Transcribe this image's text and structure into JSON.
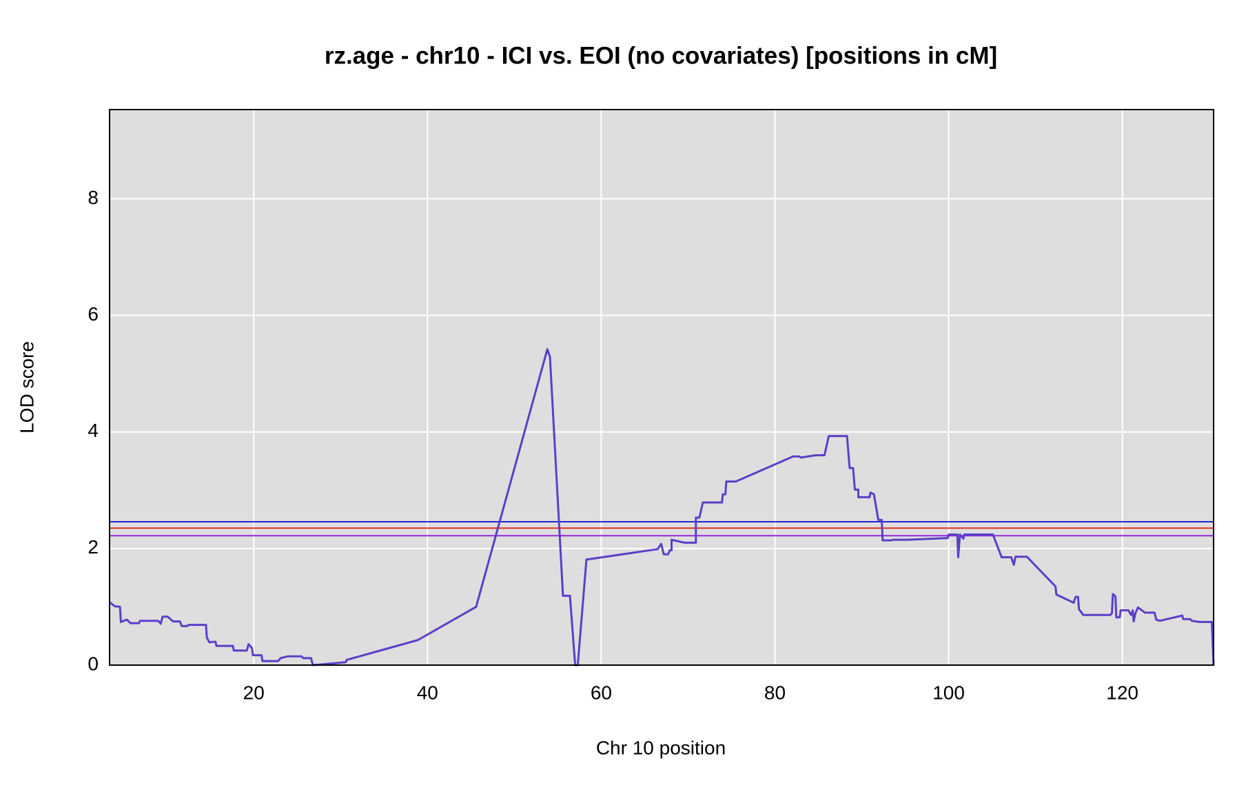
{
  "chart_data": {
    "type": "line",
    "title": "rz.age - chr10 - ICI vs. EOI (no covariates) [positions in cM]",
    "x_label": "Chr 10 position",
    "y_label": "LOD score",
    "xlim": [
      3.4,
      130.5
    ],
    "ylim": [
      0,
      9.53
    ],
    "xticks": [
      20,
      40,
      60,
      80,
      100,
      120
    ],
    "yticks": [
      0,
      2,
      4,
      6,
      8
    ],
    "grid": true,
    "background": "#dedede",
    "color": "#5a3fc8",
    "thresholds": [
      {
        "value": 2.46,
        "color": "#2323d6"
      },
      {
        "value": 2.35,
        "color": "#e0332a"
      },
      {
        "value": 2.22,
        "color": "#9126d9"
      }
    ],
    "x": [
      3.4,
      4.0,
      4.6,
      4.7,
      5.4,
      5.8,
      6.8,
      6.9,
      9.0,
      9.3,
      9.5,
      10.1,
      10.7,
      11.5,
      11.7,
      12.3,
      12.5,
      14.5,
      14.6,
      14.9,
      15.3,
      15.6,
      15.7,
      17.6,
      17.7,
      19.2,
      19.4,
      19.8,
      19.9,
      20.9,
      21.0,
      22.8,
      23.1,
      23.9,
      25.5,
      25.7,
      26.6,
      26.8,
      27.7,
      30.6,
      30.7,
      38.9,
      45.6,
      53.8,
      54.1,
      55.6,
      56.4,
      57.0,
      57.3,
      58.3,
      66.5,
      66.9,
      67.2,
      67.7,
      67.9,
      68.1,
      68.1,
      69.6,
      70.9,
      70.9,
      71.3,
      71.7,
      73.9,
      74.0,
      74.3,
      74.4,
      75.5,
      82.1,
      82.8,
      83.0,
      84.7,
      85.7,
      86.2,
      88.3,
      88.6,
      89.0,
      89.2,
      89.6,
      89.6,
      90.9,
      91.0,
      91.4,
      91.9,
      92.3,
      92.4,
      93.4,
      93.6,
      95.3,
      99.9,
      100.0,
      101.0,
      101.1,
      101.3,
      101.7,
      101.8,
      105.1,
      106.1,
      107.2,
      107.5,
      107.7,
      109.0,
      112.3,
      112.4,
      114.4,
      114.6,
      114.9,
      115.0,
      115.5,
      118.6,
      118.8,
      118.9,
      119.2,
      119.3,
      119.7,
      119.8,
      120.7,
      121.0,
      121.2,
      121.3,
      121.5,
      121.8,
      122.6,
      123.7,
      123.9,
      124.3,
      126.9,
      127.0,
      127.8,
      128.0,
      128.9,
      130.3,
      130.5
    ],
    "values": [
      1.08,
      1.01,
      1.0,
      0.74,
      0.78,
      0.72,
      0.72,
      0.76,
      0.76,
      0.71,
      0.83,
      0.83,
      0.75,
      0.75,
      0.67,
      0.67,
      0.69,
      0.69,
      0.47,
      0.39,
      0.4,
      0.4,
      0.33,
      0.33,
      0.25,
      0.25,
      0.36,
      0.29,
      0.17,
      0.17,
      0.07,
      0.07,
      0.12,
      0.15,
      0.15,
      0.12,
      0.12,
      0,
      0.01,
      0.05,
      0.09,
      0.43,
      1.0,
      5.42,
      5.29,
      1.19,
      1.19,
      0,
      0,
      1.81,
      1.99,
      2.08,
      1.9,
      1.9,
      1.97,
      1.97,
      2.15,
      2.1,
      2.1,
      2.53,
      2.53,
      2.79,
      2.79,
      2.93,
      2.93,
      3.15,
      3.15,
      3.58,
      3.58,
      3.56,
      3.6,
      3.6,
      3.93,
      3.93,
      3.38,
      3.38,
      3.01,
      3.01,
      2.88,
      2.88,
      2.96,
      2.93,
      2.49,
      2.49,
      2.14,
      2.14,
      2.15,
      2.15,
      2.18,
      2.24,
      2.24,
      1.85,
      2.24,
      2.17,
      2.24,
      2.24,
      1.85,
      1.85,
      1.72,
      1.86,
      1.86,
      1.35,
      1.21,
      1.07,
      1.17,
      1.17,
      0.96,
      0.86,
      0.86,
      0.89,
      1.22,
      1.18,
      0.82,
      0.82,
      0.94,
      0.94,
      0.86,
      0.94,
      0.75,
      0.89,
      0.99,
      0.9,
      0.9,
      0.78,
      0.76,
      0.85,
      0.79,
      0.79,
      0.76,
      0.74,
      0.74,
      0
    ]
  }
}
